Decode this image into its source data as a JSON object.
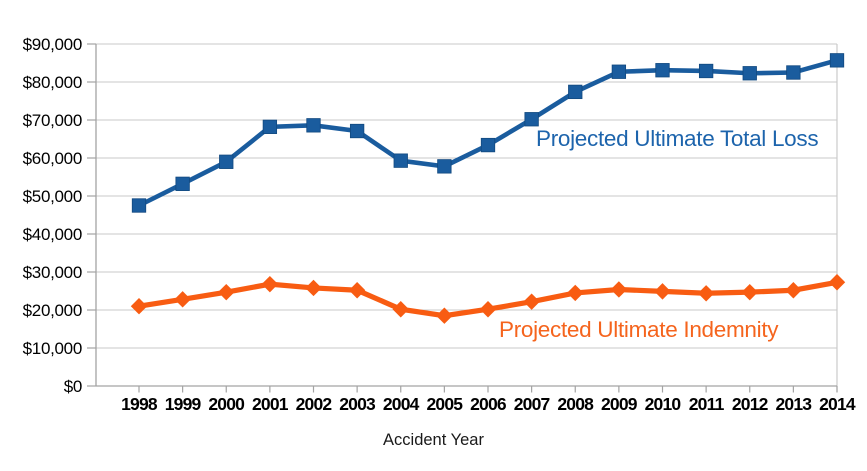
{
  "chart_data": {
    "type": "line",
    "title": "",
    "xlabel": "Accident Year",
    "ylabel": "",
    "categories": [
      "1998",
      "1999",
      "2000",
      "2001",
      "2002",
      "2003",
      "2004",
      "2005",
      "2006",
      "2007",
      "2008",
      "2009",
      "2010",
      "2011",
      "2012",
      "2013",
      "2014"
    ],
    "series": [
      {
        "name": "Projected Ultimate Total Loss",
        "marker": "square",
        "color": "#1A5C9E",
        "label_color": "#1D64AC",
        "values": [
          47500,
          53200,
          59000,
          68200,
          68600,
          67100,
          59300,
          57800,
          63400,
          70200,
          77400,
          82700,
          83100,
          82900,
          82300,
          82500,
          85700
        ]
      },
      {
        "name": "Projected Ultimate Indemnity",
        "marker": "diamond",
        "color": "#F85C12",
        "label_color": "#F5641D",
        "values": [
          21000,
          22800,
          24700,
          26800,
          25800,
          25200,
          20200,
          18500,
          20200,
          22200,
          24500,
          25400,
          24900,
          24400,
          24700,
          25200,
          27300
        ]
      }
    ],
    "ylim": [
      0,
      90000
    ],
    "ytick_step": 10000,
    "ytick_labels": [
      "$0",
      "$10,000",
      "$20,000",
      "$30,000",
      "$40,000",
      "$50,000",
      "$60,000",
      "$70,000",
      "$80,000",
      "$90,000"
    ],
    "grid": "horizontal",
    "legend": "inline-annotations"
  },
  "colors": {
    "gridline": "#CACACA",
    "plot_border": "#CACACA",
    "axis_line": "#A3A3A3",
    "tick": "#A3A3A3",
    "tick_label": "#000000"
  }
}
